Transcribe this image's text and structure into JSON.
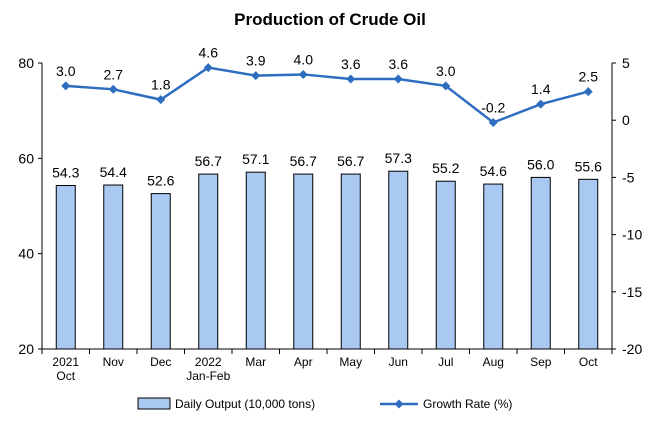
{
  "chart_data": {
    "type": "bar",
    "title": "Production of Crude Oil",
    "categories": [
      [
        "2021",
        "Oct"
      ],
      [
        "Nov"
      ],
      [
        "Dec"
      ],
      [
        "2022",
        "Jan-Feb"
      ],
      [
        "Mar"
      ],
      [
        "Apr"
      ],
      [
        "May"
      ],
      [
        "Jun"
      ],
      [
        "Jul"
      ],
      [
        "Aug"
      ],
      [
        "Sep"
      ],
      [
        "Oct"
      ]
    ],
    "series": [
      {
        "name": "Daily Output (10,000 tons)",
        "type": "bar",
        "axis": "left",
        "color": "#a9c9f2",
        "values": [
          54.3,
          54.4,
          52.6,
          56.7,
          57.1,
          56.7,
          56.7,
          57.3,
          55.2,
          54.6,
          56.0,
          55.6
        ],
        "labels": [
          "54.3",
          "54.4",
          "52.6",
          "56.7",
          "57.1",
          "56.7",
          "56.7",
          "57.3",
          "55.2",
          "54.6",
          "56.0",
          "55.6"
        ]
      },
      {
        "name": "Growth Rate (%)",
        "type": "line",
        "axis": "right",
        "color": "#2e6dbf",
        "values": [
          3.0,
          2.7,
          1.8,
          4.6,
          3.9,
          4.0,
          3.6,
          3.6,
          3.0,
          -0.2,
          1.4,
          2.5
        ],
        "labels": [
          "3.0",
          "2.7",
          "1.8",
          "4.6",
          "3.9",
          "4.0",
          "3.6",
          "3.6",
          "3.0",
          "-0.2",
          "1.4",
          "2.5"
        ]
      }
    ],
    "y_left": {
      "ylim": [
        20,
        80
      ],
      "ticks": [
        "20",
        "40",
        "60",
        "80"
      ]
    },
    "y_right": {
      "ylim": [
        -20,
        5
      ],
      "ticks": [
        "-20",
        "-15",
        "-10",
        "-5",
        "0",
        "5"
      ]
    },
    "legend_position": "bottom",
    "grid": false
  }
}
